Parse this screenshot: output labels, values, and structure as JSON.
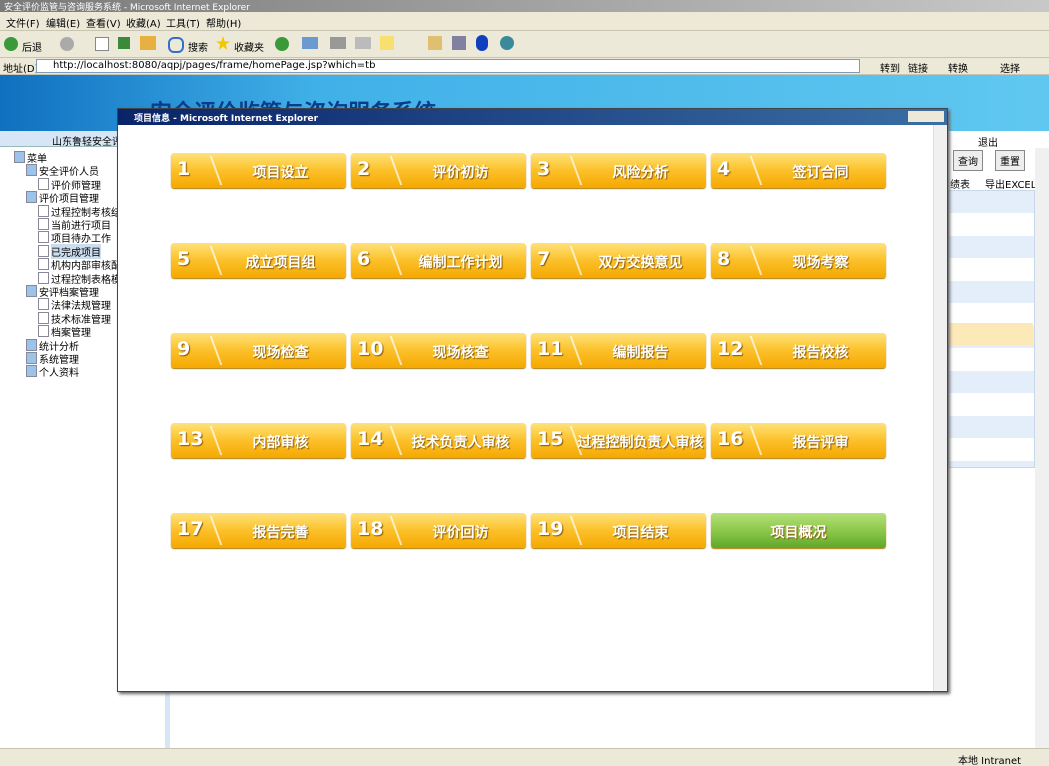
{
  "browser": {
    "title": "安全评价监管与咨询服务系统 - Microsoft Internet Explorer",
    "menu": [
      "文件(F)",
      "编辑(E)",
      "查看(V)",
      "收藏(A)",
      "工具(T)",
      "帮助(H)"
    ],
    "toolbar": {
      "back": "后退",
      "search": "搜索",
      "favorites": "收藏夹"
    },
    "address": {
      "label": "地址(D)",
      "url": "http://localhost:8080/aqpj/pages/frame/homePage.jsp?which=tb",
      "go": "转到",
      "links": "链接",
      "convert": "转换",
      "select": "选择"
    },
    "status": {
      "zone": "本地 Intranet"
    }
  },
  "app": {
    "banner_title": "安全评价监管与咨询服务系统",
    "org": "山东鲁轻安全评",
    "tree": [
      {
        "label": "菜单",
        "level": 0
      },
      {
        "label": "安全评价人员",
        "level": 1
      },
      {
        "label": "评价师管理",
        "level": 2
      },
      {
        "label": "评价项目管理",
        "level": 1
      },
      {
        "label": "过程控制考核结果",
        "level": 2
      },
      {
        "label": "当前进行项目",
        "level": 2
      },
      {
        "label": "项目待办工作",
        "level": 2
      },
      {
        "label": "已完成项目",
        "level": 2
      },
      {
        "label": "机构内部审核配置",
        "level": 2
      },
      {
        "label": "过程控制表格模板",
        "level": 2
      },
      {
        "label": "安评档案管理",
        "level": 1
      },
      {
        "label": "法律法规管理",
        "level": 2
      },
      {
        "label": "技术标准管理",
        "level": 2
      },
      {
        "label": "档案管理",
        "level": 2
      },
      {
        "label": "统计分析",
        "level": 1
      },
      {
        "label": "系统管理",
        "level": 1
      },
      {
        "label": "个人资料",
        "level": 1
      }
    ],
    "logout": "退出",
    "query": "查询",
    "reset": "重置",
    "stats": "绩表",
    "export": "导出EXCEL"
  },
  "popup": {
    "title": "项目信息 - Microsoft Internet Explorer",
    "steps": [
      {
        "number": 1,
        "label": "项目设立"
      },
      {
        "number": 2,
        "label": "评价初访"
      },
      {
        "number": 3,
        "label": "风险分析"
      },
      {
        "number": 4,
        "label": "签订合同"
      },
      {
        "number": 5,
        "label": "成立项目组"
      },
      {
        "number": 6,
        "label": "编制工作计划"
      },
      {
        "number": 7,
        "label": "双方交换意见"
      },
      {
        "number": 8,
        "label": "现场考察"
      },
      {
        "number": 9,
        "label": "现场检查"
      },
      {
        "number": 10,
        "label": "现场核查"
      },
      {
        "number": 11,
        "label": "编制报告"
      },
      {
        "number": 12,
        "label": "报告校核"
      },
      {
        "number": 13,
        "label": "内部审核"
      },
      {
        "number": 14,
        "label": "技术负责人审核"
      },
      {
        "number": 15,
        "label": "过程控制负责人审核"
      },
      {
        "number": 16,
        "label": "报告评审"
      },
      {
        "number": 17,
        "label": "报告完善"
      },
      {
        "number": 18,
        "label": "评价回访"
      },
      {
        "number": 19,
        "label": "项目结束"
      }
    ],
    "overview": "项目概况"
  }
}
